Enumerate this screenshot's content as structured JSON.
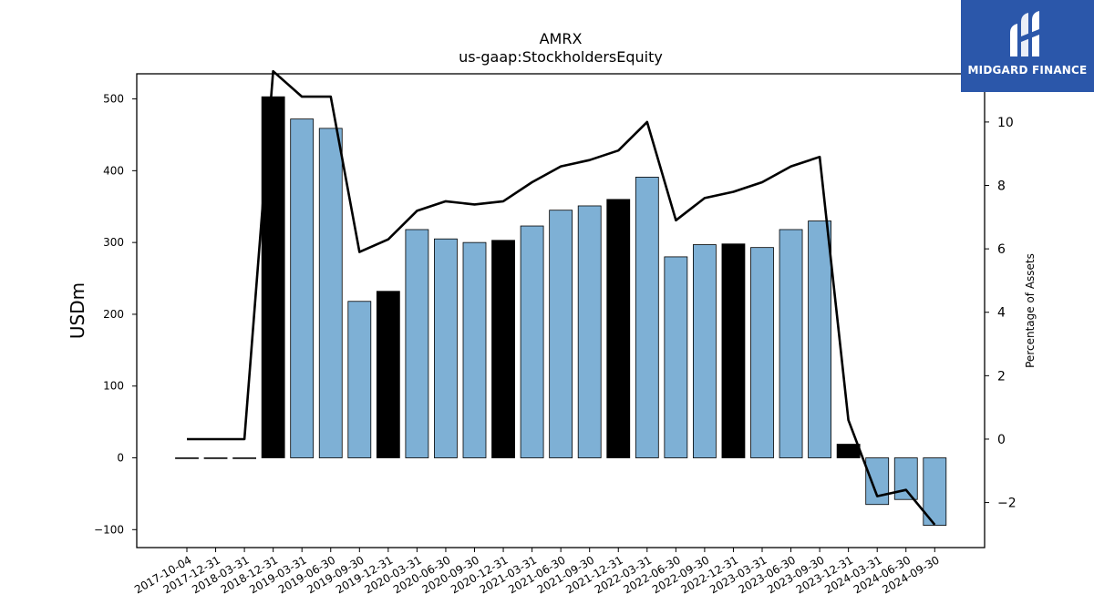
{
  "chart_data": {
    "type": "bar",
    "title": "AMRX",
    "subtitle": "us-gaap:StockholdersEquity",
    "ylabel": "USDm",
    "y2label": "Percentage of Assets",
    "ylim": [
      -125,
      535
    ],
    "y2lim": [
      -3.42,
      11.52
    ],
    "yticks": [
      -100,
      0,
      100,
      200,
      300,
      400,
      500
    ],
    "yticklabels": [
      "−100",
      "0",
      "100",
      "200",
      "300",
      "400",
      "500"
    ],
    "y2ticks": [
      -2,
      0,
      2,
      4,
      6,
      8,
      10
    ],
    "y2ticklabels": [
      "−2",
      "0",
      "2",
      "4",
      "6",
      "8",
      "10"
    ],
    "grid": false,
    "categories": [
      "2017-10-04",
      "2017-12-31",
      "2018-03-31",
      "2018-12-31",
      "2019-03-31",
      "2019-06-30",
      "2019-09-30",
      "2019-12-31",
      "2020-03-31",
      "2020-06-30",
      "2020-09-30",
      "2020-12-31",
      "2021-03-31",
      "2021-06-30",
      "2021-09-30",
      "2021-12-31",
      "2022-03-31",
      "2022-06-30",
      "2022-09-30",
      "2022-12-31",
      "2023-03-31",
      "2023-06-30",
      "2023-09-30",
      "2023-12-31",
      "2024-03-31",
      "2024-06-30",
      "2024-09-30"
    ],
    "series": [
      {
        "values": [
          0,
          0,
          0,
          503,
          472,
          459,
          218,
          232,
          318,
          305,
          300,
          303,
          323,
          345,
          351,
          360,
          391,
          280,
          297,
          298,
          293,
          318,
          330,
          19,
          -65,
          -58,
          -94
        ],
        "annual": [
          false,
          false,
          false,
          true,
          false,
          false,
          false,
          true,
          false,
          false,
          false,
          true,
          false,
          false,
          false,
          true,
          false,
          false,
          false,
          true,
          false,
          false,
          false,
          true,
          false,
          false,
          false
        ]
      },
      {
        "type": "line",
        "axis": "right",
        "values": [
          0,
          0,
          0,
          11.6,
          10.8,
          10.8,
          5.9,
          6.3,
          7.2,
          7.5,
          7.4,
          7.5,
          8.1,
          8.6,
          8.8,
          9.1,
          10.0,
          6.9,
          7.6,
          7.8,
          8.1,
          8.6,
          8.9,
          0.6,
          -1.8,
          -1.6,
          -2.7
        ]
      }
    ],
    "colors": {
      "bar": "#7eb0d5",
      "annual_bar": "#000000",
      "line": "#000000",
      "edge": "#000000"
    }
  },
  "logo": {
    "name": "MIDGARD FINANCE",
    "background": "#2b57aa"
  }
}
